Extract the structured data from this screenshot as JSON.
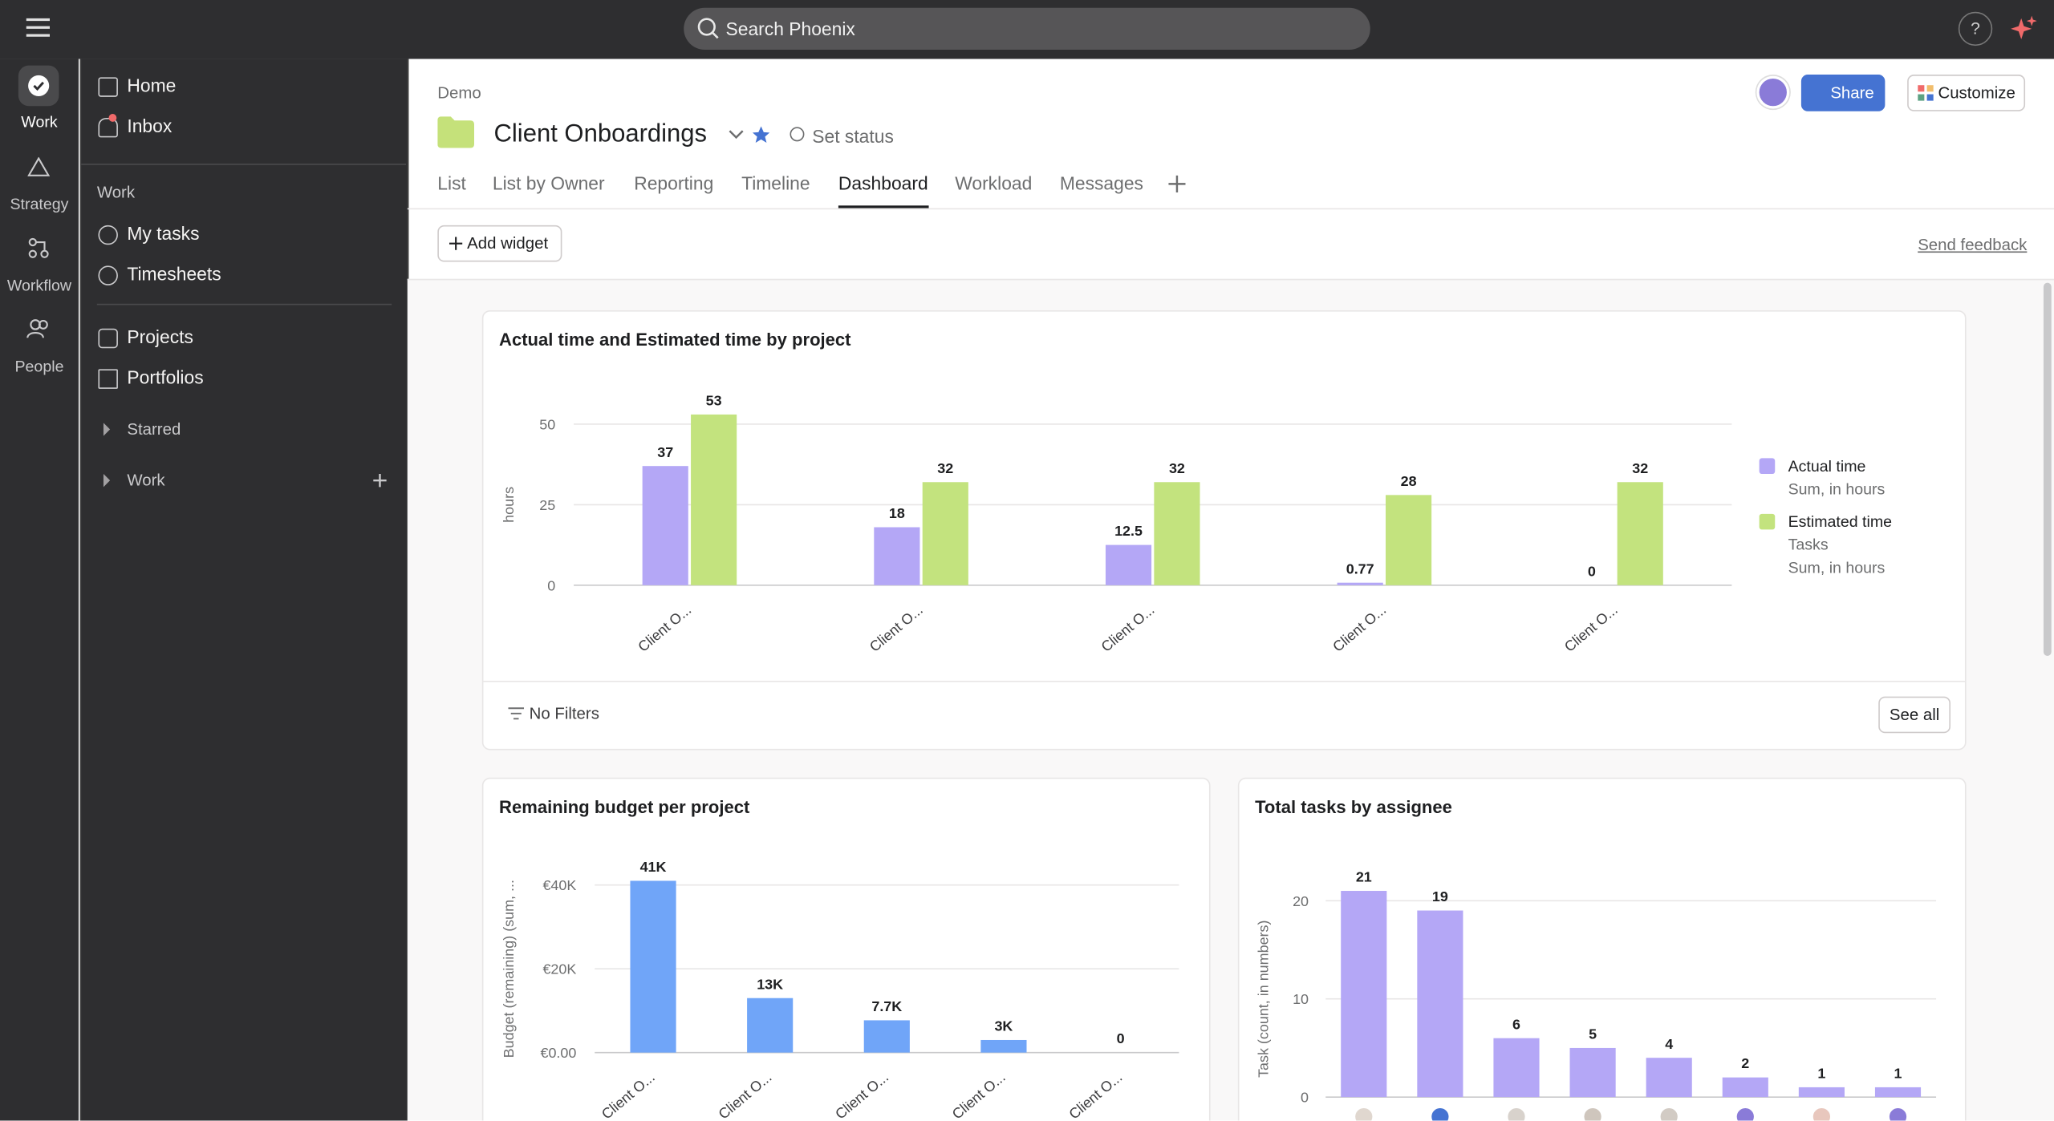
{
  "topbar": {
    "search": "Search Phoenix",
    "help": "?"
  },
  "rail": [
    "Work",
    "Strategy",
    "Workflow",
    "People"
  ],
  "sidebar": {
    "top": [
      "Home",
      "Inbox"
    ],
    "section": "Work",
    "work_items": [
      "My tasks",
      "Timesheets"
    ],
    "items": [
      "Projects",
      "Portfolios"
    ],
    "groups": [
      "Starred",
      "Work"
    ]
  },
  "header": {
    "breadcrumb": "Demo",
    "title": "Client Onboardings",
    "status": "Set status",
    "tabs": [
      "List",
      "List by Owner",
      "Reporting",
      "Timeline",
      "Dashboard",
      "Workload",
      "Messages"
    ],
    "active_tab": 4,
    "share": "Share",
    "customize": "Customize"
  },
  "toolbar": {
    "add": "Add widget",
    "feedback": "Send feedback"
  },
  "widgets": [
    {
      "title": "Actual time and Estimated time by project",
      "filters": "No Filters",
      "see_all": "See all",
      "chart": {
        "type": "bar",
        "ylabel": "hours",
        "categories": [
          "Client O...",
          "Client O...",
          "Client O...",
          "Client O...",
          "Client O..."
        ],
        "series": [
          {
            "name": "Actual time",
            "legend_notes": [
              "Sum, in hours"
            ],
            "color": "#b4a7f6",
            "values": [
              37,
              18,
              12.5,
              0.77,
              0
            ]
          },
          {
            "name": "Estimated time",
            "legend_notes": [
              "Tasks",
              "Sum, in hours"
            ],
            "color": "#c3e37e",
            "values": [
              53,
              32,
              32,
              28,
              32
            ]
          }
        ],
        "ylim": [
          0,
          50
        ],
        "yticks": [
          0,
          25,
          50
        ],
        "grid": true
      }
    },
    {
      "title": "Remaining budget per project",
      "chart": {
        "type": "bar",
        "ylabel": "Budget (remaining) (sum, ...",
        "categories": [
          "Client O...",
          "Client O...",
          "Client O...",
          "Client O...",
          "Client O..."
        ],
        "values": [
          41000,
          13000,
          7700,
          3000,
          0
        ],
        "value_labels": [
          "41K",
          "13K",
          "7.7K",
          "3K",
          "0"
        ],
        "color": "#70a5f8",
        "ylim": [
          0,
          40000
        ],
        "yticks": [
          {
            "value": 0,
            "label": "€0.00"
          },
          {
            "value": 20000,
            "label": "€20K"
          },
          {
            "value": 40000,
            "label": "€40K"
          }
        ],
        "grid": true
      }
    },
    {
      "title": "Total tasks by assignee",
      "chart": {
        "type": "bar",
        "ylabel": "Task (count, in numbers)",
        "categories": [
          null,
          null,
          null,
          null,
          null,
          null,
          null,
          null
        ],
        "values": [
          21,
          19,
          6,
          5,
          4,
          2,
          1,
          1
        ],
        "color": "#b4a7f6",
        "ylim": [
          0,
          20
        ],
        "yticks": [
          0,
          10,
          20
        ],
        "grid": true
      }
    }
  ]
}
